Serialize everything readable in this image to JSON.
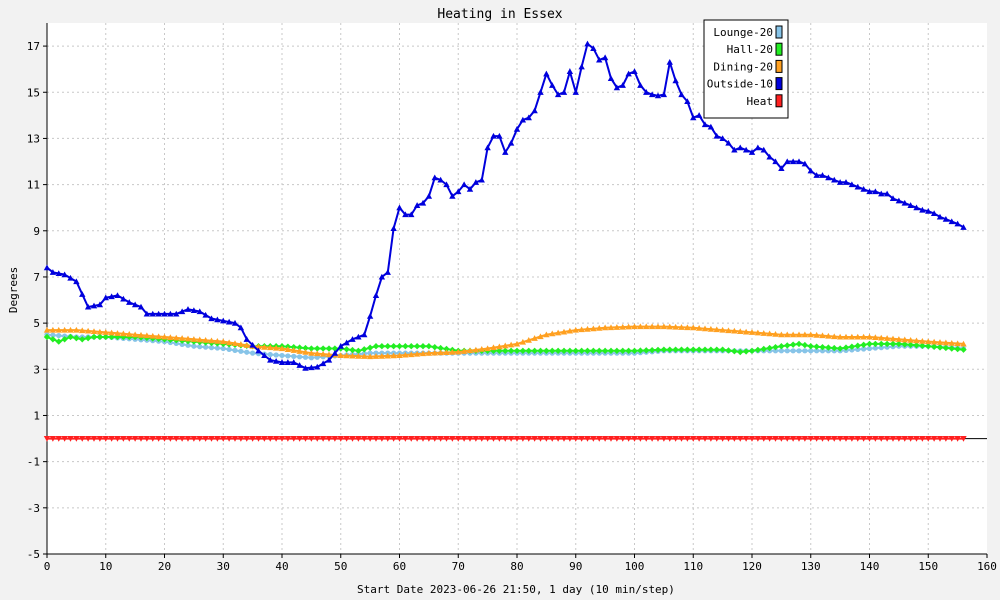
{
  "chart_data": {
    "type": "line",
    "title": "Heating in Essex",
    "xlabel": "Start Date 2023-06-26 21:50, 1 day (10 min/step)",
    "ylabel": "Degrees",
    "xlim": [
      0,
      160
    ],
    "ylim": [
      -5,
      18
    ],
    "x_ticks": [
      0,
      10,
      20,
      30,
      40,
      50,
      60,
      70,
      80,
      90,
      100,
      110,
      120,
      130,
      140,
      150,
      160
    ],
    "y_ticks": [
      -5,
      -3,
      -1,
      1,
      3,
      5,
      7,
      9,
      11,
      13,
      15,
      17
    ],
    "grid": true,
    "legend_position": "top-right",
    "series": [
      {
        "name": "Lounge-20",
        "color": "#87c4e8",
        "marker": "circle",
        "points": [
          [
            0,
            4.5
          ],
          [
            5,
            4.4
          ],
          [
            10,
            4.4
          ],
          [
            15,
            4.3
          ],
          [
            20,
            4.2
          ],
          [
            25,
            4.0
          ],
          [
            30,
            3.9
          ],
          [
            35,
            3.7
          ],
          [
            40,
            3.6
          ],
          [
            45,
            3.5
          ],
          [
            50,
            3.6
          ],
          [
            55,
            3.7
          ],
          [
            60,
            3.7
          ],
          [
            65,
            3.7
          ],
          [
            70,
            3.7
          ],
          [
            75,
            3.7
          ],
          [
            80,
            3.7
          ],
          [
            85,
            3.7
          ],
          [
            90,
            3.7
          ],
          [
            95,
            3.7
          ],
          [
            100,
            3.7
          ],
          [
            105,
            3.8
          ],
          [
            110,
            3.8
          ],
          [
            115,
            3.8
          ],
          [
            120,
            3.8
          ],
          [
            125,
            3.8
          ],
          [
            130,
            3.8
          ],
          [
            135,
            3.8
          ],
          [
            140,
            3.9
          ],
          [
            145,
            4.0
          ],
          [
            150,
            4.0
          ],
          [
            156,
            3.9
          ]
        ]
      },
      {
        "name": "Hall-20",
        "color": "#22ee22",
        "marker": "diamond",
        "points": [
          [
            0,
            4.4
          ],
          [
            2,
            4.2
          ],
          [
            4,
            4.4
          ],
          [
            6,
            4.3
          ],
          [
            8,
            4.4
          ],
          [
            10,
            4.4
          ],
          [
            15,
            4.4
          ],
          [
            20,
            4.3
          ],
          [
            25,
            4.2
          ],
          [
            30,
            4.1
          ],
          [
            35,
            4.0
          ],
          [
            40,
            4.0
          ],
          [
            45,
            3.9
          ],
          [
            50,
            3.9
          ],
          [
            53,
            3.8
          ],
          [
            56,
            4.0
          ],
          [
            60,
            4.0
          ],
          [
            65,
            4.0
          ],
          [
            70,
            3.8
          ],
          [
            75,
            3.8
          ],
          [
            80,
            3.8
          ],
          [
            85,
            3.8
          ],
          [
            90,
            3.8
          ],
          [
            95,
            3.8
          ],
          [
            100,
            3.8
          ],
          [
            105,
            3.85
          ],
          [
            110,
            3.85
          ],
          [
            115,
            3.85
          ],
          [
            118,
            3.75
          ],
          [
            120,
            3.8
          ],
          [
            125,
            4.0
          ],
          [
            128,
            4.1
          ],
          [
            130,
            4.0
          ],
          [
            135,
            3.9
          ],
          [
            140,
            4.1
          ],
          [
            145,
            4.1
          ],
          [
            150,
            4.0
          ],
          [
            156,
            3.85
          ]
        ]
      },
      {
        "name": "Dining-20",
        "color": "#ffa020",
        "marker": "triangle-up",
        "points": [
          [
            0,
            4.7
          ],
          [
            5,
            4.7
          ],
          [
            10,
            4.6
          ],
          [
            15,
            4.5
          ],
          [
            20,
            4.4
          ],
          [
            25,
            4.3
          ],
          [
            30,
            4.2
          ],
          [
            35,
            4.0
          ],
          [
            40,
            3.9
          ],
          [
            45,
            3.7
          ],
          [
            50,
            3.6
          ],
          [
            55,
            3.55
          ],
          [
            60,
            3.6
          ],
          [
            65,
            3.7
          ],
          [
            70,
            3.75
          ],
          [
            75,
            3.9
          ],
          [
            80,
            4.1
          ],
          [
            85,
            4.5
          ],
          [
            90,
            4.7
          ],
          [
            95,
            4.8
          ],
          [
            100,
            4.85
          ],
          [
            105,
            4.85
          ],
          [
            110,
            4.8
          ],
          [
            115,
            4.7
          ],
          [
            120,
            4.6
          ],
          [
            125,
            4.5
          ],
          [
            130,
            4.5
          ],
          [
            135,
            4.4
          ],
          [
            140,
            4.4
          ],
          [
            145,
            4.3
          ],
          [
            150,
            4.2
          ],
          [
            156,
            4.1
          ]
        ]
      },
      {
        "name": "Outside-10",
        "color": "#0000dd",
        "marker": "triangle-up",
        "points": [
          [
            0,
            7.4
          ],
          [
            1,
            7.2
          ],
          [
            3,
            7.1
          ],
          [
            5,
            6.8
          ],
          [
            7,
            5.7
          ],
          [
            9,
            5.8
          ],
          [
            10,
            6.1
          ],
          [
            12,
            6.2
          ],
          [
            14,
            5.9
          ],
          [
            16,
            5.7
          ],
          [
            17,
            5.4
          ],
          [
            20,
            5.4
          ],
          [
            22,
            5.4
          ],
          [
            24,
            5.6
          ],
          [
            26,
            5.5
          ],
          [
            28,
            5.2
          ],
          [
            30,
            5.1
          ],
          [
            32,
            5.0
          ],
          [
            33,
            4.8
          ],
          [
            34,
            4.3
          ],
          [
            36,
            3.8
          ],
          [
            38,
            3.4
          ],
          [
            40,
            3.3
          ],
          [
            42,
            3.3
          ],
          [
            44,
            3.05
          ],
          [
            46,
            3.1
          ],
          [
            48,
            3.4
          ],
          [
            50,
            4.0
          ],
          [
            52,
            4.3
          ],
          [
            54,
            4.5
          ],
          [
            55,
            5.3
          ],
          [
            56,
            6.2
          ],
          [
            57,
            7.0
          ],
          [
            58,
            7.2
          ],
          [
            59,
            9.1
          ],
          [
            60,
            10.0
          ],
          [
            61,
            9.7
          ],
          [
            62,
            9.7
          ],
          [
            63,
            10.1
          ],
          [
            64,
            10.2
          ],
          [
            65,
            10.5
          ],
          [
            66,
            11.3
          ],
          [
            67,
            11.2
          ],
          [
            68,
            11.0
          ],
          [
            69,
            10.5
          ],
          [
            70,
            10.7
          ],
          [
            71,
            11.0
          ],
          [
            72,
            10.8
          ],
          [
            73,
            11.1
          ],
          [
            74,
            11.2
          ],
          [
            75,
            12.6
          ],
          [
            76,
            13.1
          ],
          [
            77,
            13.1
          ],
          [
            78,
            12.4
          ],
          [
            79,
            12.8
          ],
          [
            80,
            13.4
          ],
          [
            81,
            13.8
          ],
          [
            82,
            13.9
          ],
          [
            83,
            14.2
          ],
          [
            84,
            15.0
          ],
          [
            85,
            15.8
          ],
          [
            86,
            15.3
          ],
          [
            87,
            14.9
          ],
          [
            88,
            15.0
          ],
          [
            89,
            15.9
          ],
          [
            90,
            15.0
          ],
          [
            91,
            16.1
          ],
          [
            92,
            17.1
          ],
          [
            93,
            16.9
          ],
          [
            94,
            16.4
          ],
          [
            95,
            16.5
          ],
          [
            96,
            15.6
          ],
          [
            97,
            15.2
          ],
          [
            98,
            15.3
          ],
          [
            99,
            15.8
          ],
          [
            100,
            15.9
          ],
          [
            101,
            15.3
          ],
          [
            102,
            15.0
          ],
          [
            103,
            14.9
          ],
          [
            104,
            14.85
          ],
          [
            105,
            14.9
          ],
          [
            106,
            16.3
          ],
          [
            107,
            15.5
          ],
          [
            108,
            14.9
          ],
          [
            109,
            14.6
          ],
          [
            110,
            13.9
          ],
          [
            111,
            14.0
          ],
          [
            112,
            13.6
          ],
          [
            113,
            13.5
          ],
          [
            114,
            13.1
          ],
          [
            115,
            13.0
          ],
          [
            116,
            12.8
          ],
          [
            117,
            12.5
          ],
          [
            118,
            12.6
          ],
          [
            119,
            12.5
          ],
          [
            120,
            12.4
          ],
          [
            121,
            12.6
          ],
          [
            122,
            12.5
          ],
          [
            123,
            12.2
          ],
          [
            124,
            12.0
          ],
          [
            125,
            11.7
          ],
          [
            126,
            12.0
          ],
          [
            127,
            12.0
          ],
          [
            128,
            12.0
          ],
          [
            129,
            11.9
          ],
          [
            130,
            11.6
          ],
          [
            131,
            11.4
          ],
          [
            132,
            11.4
          ],
          [
            133,
            11.3
          ],
          [
            134,
            11.2
          ],
          [
            135,
            11.1
          ],
          [
            136,
            11.1
          ],
          [
            137,
            11.0
          ],
          [
            138,
            10.9
          ],
          [
            139,
            10.8
          ],
          [
            140,
            10.7
          ],
          [
            141,
            10.7
          ],
          [
            142,
            10.6
          ],
          [
            143,
            10.6
          ],
          [
            144,
            10.4
          ],
          [
            145,
            10.3
          ],
          [
            146,
            10.2
          ],
          [
            147,
            10.1
          ],
          [
            148,
            10.0
          ],
          [
            149,
            9.9
          ],
          [
            150,
            9.85
          ],
          [
            151,
            9.75
          ],
          [
            152,
            9.6
          ],
          [
            153,
            9.5
          ],
          [
            154,
            9.4
          ],
          [
            155,
            9.3
          ],
          [
            156,
            9.15
          ]
        ]
      },
      {
        "name": "Heat",
        "color": "#ff2020",
        "marker": "triangle-down",
        "points": [
          [
            0,
            0
          ],
          [
            156,
            0
          ]
        ]
      }
    ]
  }
}
